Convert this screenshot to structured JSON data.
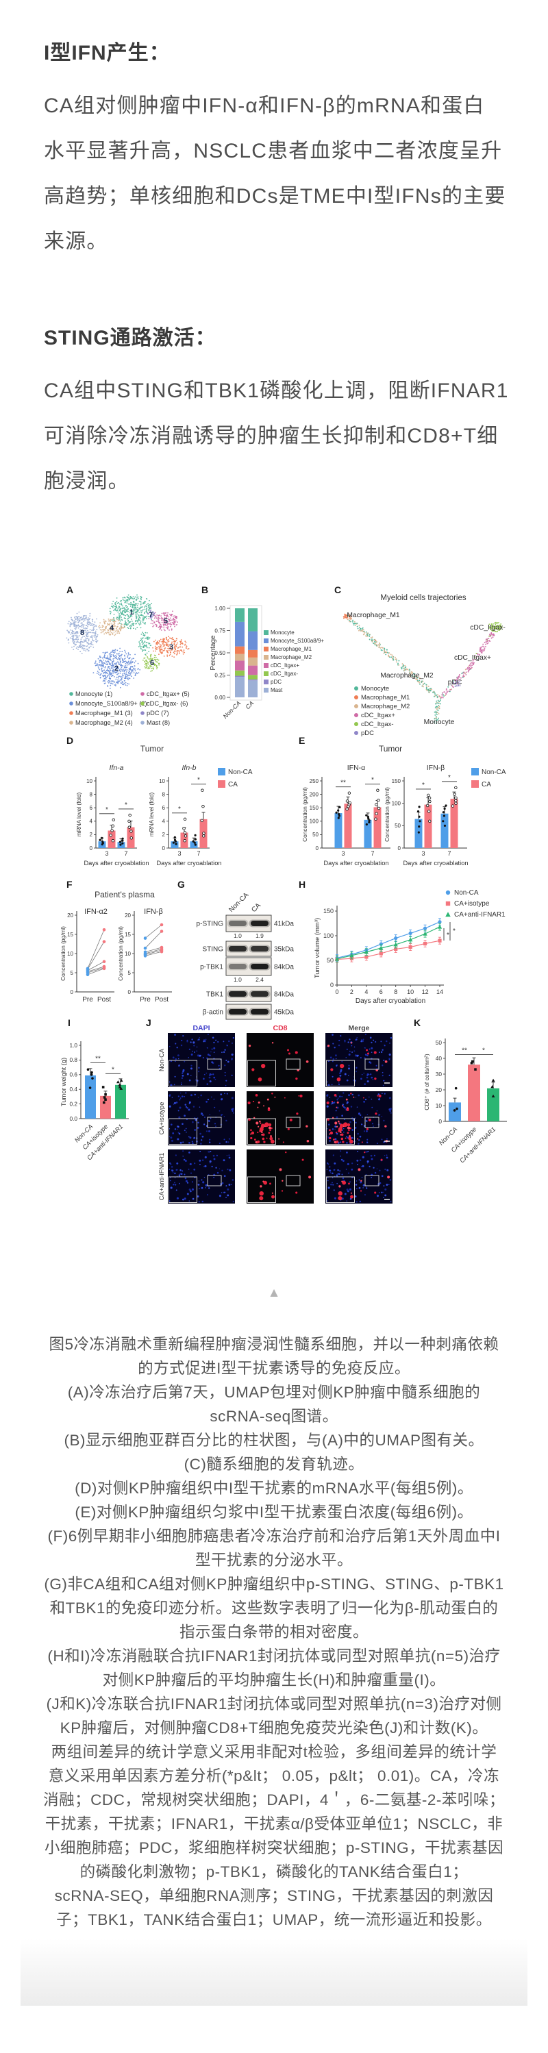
{
  "app": {
    "type": "article-figure-page",
    "background": "#ffffff"
  },
  "sections": [
    {
      "heading": "I型IFN产生：",
      "lines": [
        "CA组对侧肿瘤中IFN-α和IFN-β的mRNA和蛋白",
        "水平显著升高，NSCLC患者血浆中二者浓度呈升",
        "高趋势；单核细胞和DCs是TME中I型IFNs的主要",
        "来源。"
      ]
    },
    {
      "heading": "STING通路激活：",
      "lines": [
        "CA组中STING和TBK1磷酸化上调，阻断IFNAR1",
        "可消除冷冻消融诱导的肿瘤生长抑制和CD8+T细",
        "胞浸润。"
      ]
    }
  ],
  "misc": {
    "triangle": "▲"
  },
  "figure": {
    "panel_letters": [
      "A",
      "B",
      "C",
      "D",
      "E",
      "F",
      "G",
      "H",
      "I",
      "J",
      "K"
    ],
    "umap": {
      "clusters": [
        {
          "n": 1,
          "name": "Monocyte",
          "color": "#52b79a"
        },
        {
          "n": 2,
          "name": "Monocyte_S100a8/9+",
          "color": "#6b8fd8"
        },
        {
          "n": 3,
          "name": "Macrophage_M1",
          "color": "#ef7d54"
        },
        {
          "n": 4,
          "name": "Macrophage_M2",
          "color": "#d9b48e"
        },
        {
          "n": 5,
          "name": "cDC_Itgax+",
          "color": "#cf6ba6"
        },
        {
          "n": 6,
          "name": "cDC_Itgax-",
          "color": "#93c74f"
        },
        {
          "n": 7,
          "name": "pDC",
          "color": "#8f86c8"
        },
        {
          "n": 8,
          "name": "Mast",
          "color": "#9db0d6"
        }
      ],
      "legend": [
        "Monocyte (1)",
        "Monocyte_S100a8/9+ (2)",
        "Macrophage_M1 (3)",
        "Macrophage_M2 (4)",
        "cDC_Itgax+ (5)",
        "cDC_Itgax- (6)",
        "pDC (7)",
        "Mast (8)"
      ]
    },
    "trajectory": {
      "title": "Myeloid cells trajectories",
      "point_labels": [
        "Macrophage_M1",
        "Macrophage_M2",
        "cDC_Itgax-",
        "cDC_Itgax+",
        "pDC",
        "Monocyte"
      ],
      "legend": [
        {
          "label": "Monocyte",
          "color": "#52b79a"
        },
        {
          "label": "Macrophage_M1",
          "color": "#ef7d54"
        },
        {
          "label": "Macrophage_M2",
          "color": "#d9b48e"
        },
        {
          "label": "cDC_Itgax+",
          "color": "#cf6ba6"
        },
        {
          "label": "cDC_Itgax-",
          "color": "#93c74f"
        },
        {
          "label": "pDC",
          "color": "#8f86c8"
        }
      ]
    },
    "blot": {
      "columns": [
        "Non-CA",
        "CA"
      ],
      "rows": [
        {
          "protein": "p-STING",
          "kda": "41kDa",
          "values": [
            "1.0",
            "1.9"
          ],
          "intensity": [
            0.5,
            0.92
          ]
        },
        {
          "protein": "STING",
          "kda": "35kDa",
          "intensity": [
            0.85,
            0.8
          ]
        },
        {
          "protein": "p-TBK1",
          "kda": "84kDa",
          "values": [
            "1.0",
            "2.4"
          ],
          "intensity": [
            0.45,
            0.95
          ]
        },
        {
          "protein": "TBK1",
          "kda": "84kDa",
          "intensity": [
            0.9,
            0.85
          ]
        },
        {
          "protein": "β-actin",
          "kda": "45kDa",
          "intensity": [
            0.95,
            0.95
          ]
        }
      ]
    },
    "micrographs": {
      "col_headers": [
        {
          "text": "DAPI",
          "color": "#4444cc"
        },
        {
          "text": "CD8",
          "color": "#e5344e"
        },
        {
          "text": "Merge",
          "color": "#4d4d4d"
        }
      ],
      "row_labels": [
        "Non-CA",
        "CA+isotype",
        "CA+anti-IFNAR1"
      ],
      "red_cell_counts": [
        8,
        46,
        11
      ]
    }
  },
  "chart_data": [
    {
      "id": "B",
      "type": "bar",
      "subtype": "stacked_percentage",
      "ylabel": "Percentage",
      "yticks": [
        "0.00",
        "0.25",
        "0.50",
        "0.75",
        "1.00"
      ],
      "categories": [
        "Non-CA",
        "CA"
      ],
      "series_bottom_to_top": [
        {
          "name": "Mast",
          "color": "#9db0d6",
          "values": [
            0.23,
            0.19
          ]
        },
        {
          "name": "pDC",
          "color": "#8f86c8",
          "values": [
            0.012,
            0.012
          ]
        },
        {
          "name": "cDC_Itgax-",
          "color": "#93c74f",
          "values": [
            0.06,
            0.05
          ]
        },
        {
          "name": "cDC_Itgax+",
          "color": "#cf6ba6",
          "values": [
            0.11,
            0.105
          ]
        },
        {
          "name": "Macrophage_M2",
          "color": "#d9b48e",
          "values": [
            0.075,
            0.09
          ]
        },
        {
          "name": "Macrophage_M1",
          "color": "#ef7d54",
          "values": [
            0.085,
            0.085
          ]
        },
        {
          "name": "Monocyte_S100a8/9+",
          "color": "#6b8fd8",
          "values": [
            0.275,
            0.21
          ]
        },
        {
          "name": "Monocyte",
          "color": "#52b79a",
          "values": [
            0.153,
            0.258
          ]
        }
      ],
      "legend_top_to_bottom": [
        "Monocyte",
        "Monocyte_S100a8/9+",
        "Macrophage_M1",
        "Macrophage_M2",
        "cDC_Itgax+",
        "cDC_Itgax-",
        "pDC",
        "Mast"
      ]
    },
    {
      "id": "D",
      "type": "bar",
      "subtype": "grouped",
      "panel_title": "Tumor",
      "xlabel": "Days after cryoablation",
      "categories": [
        "3",
        "7"
      ],
      "legend": [
        "Non-CA",
        "CA"
      ],
      "charts": [
        {
          "title": "Ifn-a",
          "title_italic": true,
          "ylabel": "mRNA level (fold)",
          "ylim": [
            0,
            10
          ],
          "yticks": [
            0,
            2,
            4,
            6,
            8,
            10
          ],
          "series": [
            {
              "name": "Non-CA",
              "color": "#4f9ee8",
              "values": [
                1.0,
                0.9
              ],
              "dots": [
                [
                  0.55,
                  0.75,
                  0.95,
                  1.2,
                  1.5
                ],
                [
                  0.5,
                  0.7,
                  0.9,
                  1.1,
                  1.4
                ]
              ]
            },
            {
              "name": "CA",
              "color": "#f4777f",
              "values": [
                2.6,
                3.1
              ],
              "dots": [
                [
                  1.1,
                  1.9,
                  2.6,
                  3.3,
                  4.2
                ],
                [
                  1.5,
                  2.5,
                  3.1,
                  4.0,
                  4.9
                ]
              ]
            }
          ],
          "sig": [
            "*",
            "*"
          ]
        },
        {
          "title": "Ifn-b",
          "title_italic": true,
          "ylabel": "mRNA level (fold)",
          "ylim": [
            0,
            10
          ],
          "yticks": [
            0,
            2,
            4,
            6,
            8,
            10
          ],
          "series": [
            {
              "name": "Non-CA",
              "color": "#4f9ee8",
              "values": [
                1.0,
                1.0
              ],
              "dots": [
                [
                  0.6,
                  0.8,
                  1.0,
                  1.2,
                  1.6
                ],
                [
                  0.5,
                  0.8,
                  1.0,
                  1.3,
                  1.9
                ]
              ]
            },
            {
              "name": "CA",
              "color": "#f4777f",
              "values": [
                2.3,
                4.3
              ],
              "dots": [
                [
                  1.1,
                  1.8,
                  2.3,
                  2.9,
                  4.3
                ],
                [
                  1.8,
                  2.2,
                  4.1,
                  6.2,
                  8.6
                ]
              ]
            }
          ],
          "sig": [
            "*",
            "*"
          ]
        }
      ]
    },
    {
      "id": "E",
      "type": "bar",
      "subtype": "grouped",
      "panel_title": "Tumor",
      "xlabel": "Days after cryoablation",
      "categories": [
        "3",
        "7"
      ],
      "legend": [
        "Non-CA",
        "CA"
      ],
      "charts": [
        {
          "title": "IFN-α",
          "title_italic": false,
          "ylabel": "Concentration (pg/ml)",
          "ylim": [
            0,
            250
          ],
          "yticks": [
            0,
            50,
            100,
            150,
            200,
            250
          ],
          "series": [
            {
              "name": "Non-CA",
              "color": "#4f9ee8",
              "values": [
                130,
                105
              ],
              "dots": [
                [
                  112,
                  120,
                  126,
                  132,
                  140,
                  152
                ],
                [
                  88,
                  96,
                  103,
                  110,
                  116,
                  122
                ]
              ]
            },
            {
              "name": "CA",
              "color": "#f4777f",
              "values": [
                165,
                152
              ],
              "dots": [
                [
                  145,
                  155,
                  162,
                  168,
                  175,
                  205
                ],
                [
                  108,
                  128,
                  148,
                  162,
                  178,
                  215
                ]
              ]
            }
          ],
          "sig": [
            "**",
            "*"
          ]
        },
        {
          "title": "IFN-β",
          "title_italic": false,
          "ylabel": "Concentration (pg/ml)",
          "ylim": [
            0,
            150
          ],
          "yticks": [
            0,
            50,
            100,
            150
          ],
          "series": [
            {
              "name": "Non-CA",
              "color": "#4f9ee8",
              "values": [
                65,
                77
              ],
              "dots": [
                [
                  35,
                  48,
                  60,
                  70,
                  82,
                  92
                ],
                [
                  50,
                  60,
                  72,
                  80,
                  88,
                  95
                ]
              ]
            },
            {
              "name": "CA",
              "color": "#f4777f",
              "values": [
                97,
                110
              ],
              "dots": [
                [
                  60,
                  82,
                  95,
                  104,
                  112,
                  118
                ],
                [
                  94,
                  100,
                  106,
                  112,
                  120,
                  135
                ]
              ]
            }
          ],
          "sig": [
            "*",
            "*"
          ]
        }
      ]
    },
    {
      "id": "F",
      "type": "line",
      "subtype": "paired",
      "panel_title": "Patient's plasma",
      "categories": [
        "Pre",
        "Post"
      ],
      "pre_color": "#4f9ee8",
      "post_color": "#f4777f",
      "charts": [
        {
          "title": "IFN-α2",
          "ylabel": "Concentration (pg/ml)",
          "ylim": [
            0,
            20
          ],
          "yticks": [
            0,
            5,
            10,
            15,
            20
          ],
          "pairs": [
            [
              4.5,
              6.1
            ],
            [
              5.0,
              6.3
            ],
            [
              5.3,
              6.6
            ],
            [
              5.6,
              7.9
            ],
            [
              5.9,
              13.1
            ],
            [
              6.1,
              16.2
            ]
          ]
        },
        {
          "title": "IFN-β",
          "ylabel": "Concentration (pg/ml)",
          "ylim": [
            0,
            20
          ],
          "yticks": [
            0,
            5,
            10,
            15,
            20
          ],
          "pairs": [
            [
              9.4,
              10.5
            ],
            [
              9.7,
              10.9
            ],
            [
              10.0,
              11.2
            ],
            [
              10.4,
              11.6
            ],
            [
              11.4,
              15.8
            ],
            [
              14.0,
              17.5
            ]
          ]
        }
      ]
    },
    {
      "id": "H",
      "type": "line",
      "ylabel": "Tumor volume (mm³)",
      "xlabel": "Days after cryoablation",
      "x": [
        0,
        2,
        4,
        6,
        8,
        10,
        12,
        14
      ],
      "ylim": [
        0,
        150
      ],
      "yticks": [
        0,
        50,
        100,
        150
      ],
      "series": [
        {
          "name": "Non-CA",
          "color": "#4f9ee8",
          "marker": "circle",
          "values": [
            55,
            62,
            71,
            83,
            95,
            105,
            115,
            128
          ]
        },
        {
          "name": "CA+isotype",
          "color": "#f4777f",
          "marker": "square",
          "values": [
            52,
            54,
            57,
            64,
            73,
            77,
            84,
            90
          ]
        },
        {
          "name": "CA+anti-IFNAR1",
          "color": "#2bb673",
          "marker": "triangle",
          "values": [
            53,
            60,
            67,
            75,
            82,
            92,
            104,
            118
          ]
        }
      ],
      "sig": [
        "*",
        "*"
      ]
    },
    {
      "id": "I",
      "type": "bar",
      "ylabel": "Tumor weight (g)",
      "ylim": [
        0,
        1.0
      ],
      "yticks": [
        "0.0",
        "0.2",
        "0.4",
        "0.6",
        "0.8",
        "1.0"
      ],
      "categories": [
        "Non-CA",
        "CA+isotype",
        "CA+anti-IFNAR1"
      ],
      "bars": [
        {
          "value": 0.59,
          "color": "#4f9ee8",
          "marker": "circle",
          "dots": [
            0.42,
            0.55,
            0.6,
            0.63,
            0.67
          ]
        },
        {
          "value": 0.31,
          "color": "#f4777f",
          "marker": "square",
          "dots": [
            0.22,
            0.26,
            0.29,
            0.33,
            0.43
          ]
        },
        {
          "value": 0.46,
          "color": "#2bb673",
          "marker": "triangle",
          "dots": [
            0.41,
            0.43,
            0.46,
            0.5,
            0.52
          ]
        }
      ],
      "sig": [
        {
          "between": [
            0,
            1
          ],
          "label": "**"
        },
        {
          "between": [
            1,
            2
          ],
          "label": "*"
        }
      ]
    },
    {
      "id": "K",
      "type": "bar",
      "ylabel": "CD8⁺ (# of cells/mm²)",
      "ylim": [
        0,
        50
      ],
      "yticks": [
        0,
        10,
        20,
        30,
        40,
        50
      ],
      "categories": [
        "Non-CA",
        "CA+isotype",
        "CA+anti-IFNAR1"
      ],
      "bars": [
        {
          "value": 12,
          "color": "#4f9ee8",
          "marker": "circle",
          "dots": [
            7,
            8,
            21
          ]
        },
        {
          "value": 36,
          "color": "#f4777f",
          "marker": "square",
          "dots": [
            33,
            37,
            38
          ]
        },
        {
          "value": 21,
          "color": "#2bb673",
          "marker": "triangle",
          "dots": [
            16,
            22,
            26
          ]
        }
      ],
      "sig": [
        {
          "between": [
            0,
            1
          ],
          "label": "**"
        },
        {
          "between": [
            1,
            2
          ],
          "label": "*"
        }
      ]
    }
  ],
  "caption": {
    "lines": [
      "图5冷冻消融术重新编程肿瘤浸润性髓系细胞，并以一种刺痛依赖",
      "的方式促进I型干扰素诱导的免疫反应。",
      "(A)冷冻治疗后第7天，UMAP包埋对侧KP肿瘤中髓系细胞的",
      "scRNA-seq图谱。",
      "(B)显示细胞亚群百分比的柱状图，与(A)中的UMAP图有关。",
      "(C)髓系细胞的发育轨迹。",
      "(D)对侧KP肿瘤组织中I型干扰素的mRNA水平(每组5例)。",
      "(E)对侧KP肿瘤组织匀浆中I型干扰素蛋白浓度(每组6例)。",
      "(F)6例早期非小细胞肺癌患者冷冻治疗前和治疗后第1天外周血中I",
      "型干扰素的分泌水平。",
      "(G)非CA组和CA组对侧KP肿瘤组织中p-STING、STING、p-TBK1",
      "和TBK1的免疫印迹分析。这些数字表明了归一化为β-肌动蛋白的",
      "指示蛋白条带的相对密度。",
      "(H和I)冷冻消融联合抗IFNAR1封闭抗体或同型对照单抗(n=5)治疗",
      "对侧KP肿瘤后的平均肿瘤生长(H)和肿瘤重量(I)。",
      "(J和K)冷冻联合抗IFNAR1封闭抗体或同型对照单抗(n=3)治疗对侧",
      "KP肿瘤后，对侧肿瘤CD8+T细胞免疫荧光染色(J)和计数(K)。",
      "两组间差异的统计学意义采用非配对t检验，多组间差异的统计学",
      "意义采用单因素方差分析(*p&lt； 0.05，p&lt； 0.01)。CA，冷冻",
      "消融；CDC，常规树突状细胞；DAPI，4＇，6-二氨基-2-苯吲哚；",
      "干扰素，干扰素；IFNAR1，干扰素α/β受体亚单位1；NSCLC，非",
      "小细胞肺癌；PDC，浆细胞样树突状细胞；p-STING，干扰素基因",
      "的磷酸化刺激物；p-TBK1，磷酸化的TANK结合蛋白1；",
      "scRNA-SEQ，单细胞RNA测序；STING，干扰素基因的刺激因",
      "子；TBK1，TANK结合蛋白1；UMAP，统一流形逼近和投影。"
    ]
  },
  "colors": {
    "non_ca_blue": "#4f9ee8",
    "ca_red": "#f4777f",
    "anti_ifnar1_green": "#2bb673",
    "axis": "#333333",
    "caption_text": "#565656",
    "body_text": "#4e4e4e",
    "heading_text": "#3b3b3b",
    "triangle": "#b4b4b4"
  }
}
